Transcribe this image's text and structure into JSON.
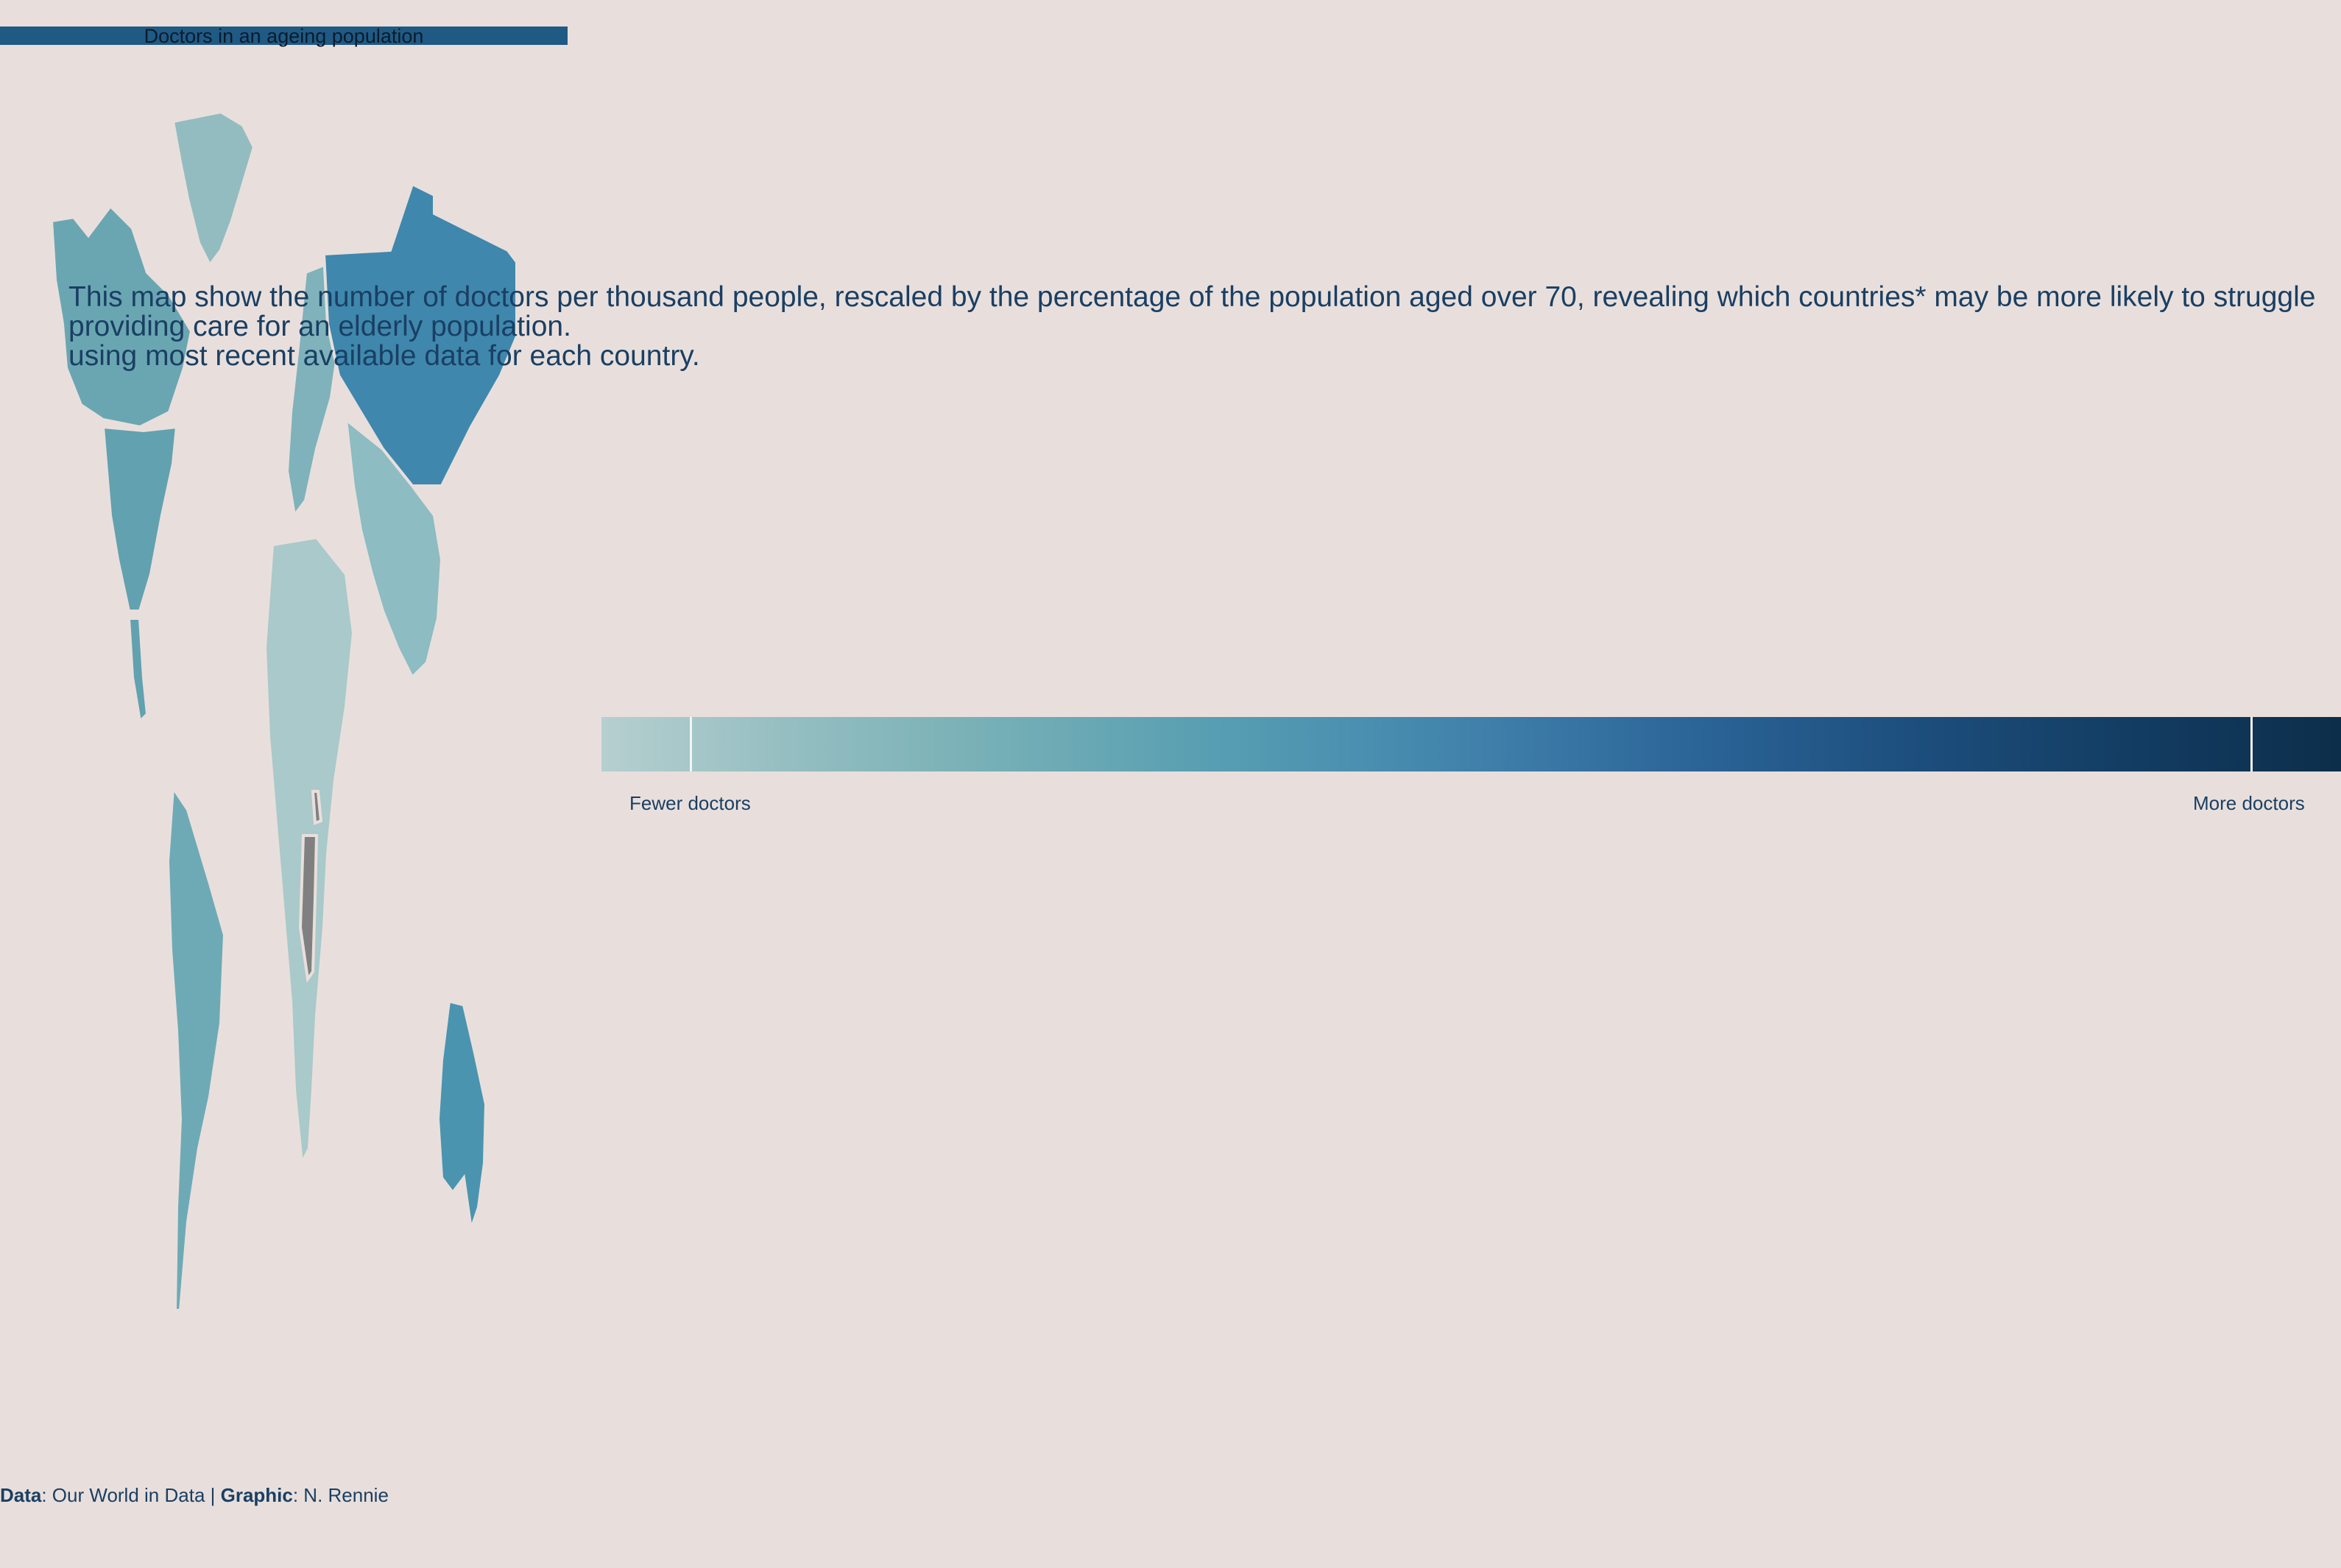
{
  "title": "Doctors in an ageing population",
  "subtitle": {
    "line1": "This map show the number of doctors per thousand people, rescaled by the percentage of the population aged over 70, revealing which countries* may be more likely to struggle",
    "line2": "providing care for an elderly population.",
    "line3": "using most recent available data for each country."
  },
  "legend": {
    "low_label": "Fewer doctors",
    "high_label": "More doctors",
    "colors": [
      "#b6cfd0",
      "#77b0b6",
      "#4a8fb0",
      "#2b6497",
      "#0c2e4b"
    ]
  },
  "caption": {
    "data_key": "Data",
    "data_value": ": Our World in Data | ",
    "graphic_key": "Graphic",
    "graphic_value": ": N. Rennie"
  },
  "map": {
    "no_data_color": "#808080",
    "colors": {
      "greenland": "#93bcc0",
      "canada": "#6aa6b2",
      "usa": "#62a1b0",
      "russia": "#3f87ad",
      "europe": "#7fb2bb",
      "africa": "#a9c9ca",
      "south_america": "#6eaab6",
      "australia": "#4a94b0",
      "asia": "#8dbcc2"
    }
  }
}
